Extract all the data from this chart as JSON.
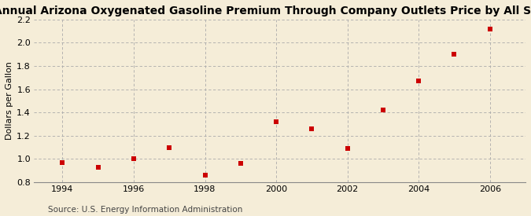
{
  "title": "Annual Arizona Oxygenated Gasoline Premium Through Company Outlets Price by All Sellers",
  "ylabel": "Dollars per Gallon",
  "source": "Source: U.S. Energy Information Administration",
  "background_color": "#f5edd8",
  "x_data": [
    1994,
    1995,
    1996,
    1997,
    1998,
    1999,
    2000,
    2001,
    2002,
    2003,
    2004,
    2005,
    2006
  ],
  "y_data": [
    0.97,
    0.93,
    1.0,
    1.1,
    0.86,
    0.96,
    1.32,
    1.26,
    1.09,
    1.42,
    1.67,
    1.9,
    2.12
  ],
  "marker_color": "#cc0000",
  "marker": "s",
  "marker_size": 5,
  "xlim": [
    1993.2,
    2007.0
  ],
  "ylim": [
    0.8,
    2.2
  ],
  "yticks": [
    0.8,
    1.0,
    1.2,
    1.4,
    1.6,
    1.8,
    2.0,
    2.2
  ],
  "xticks": [
    1994,
    1996,
    1998,
    2000,
    2002,
    2004,
    2006
  ],
  "grid_color": "#aaaaaa",
  "title_fontsize": 10,
  "ylabel_fontsize": 8,
  "tick_fontsize": 8,
  "source_fontsize": 7.5
}
